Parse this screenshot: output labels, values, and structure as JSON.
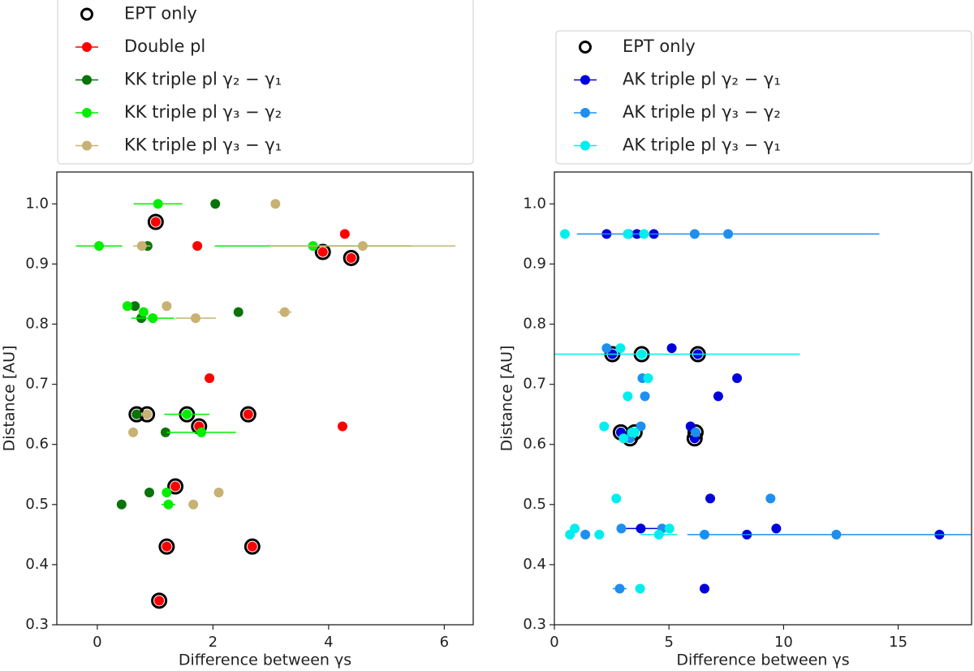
{
  "chart_data": [
    {
      "type": "scatter",
      "xlabel": "Difference between γs",
      "ylabel": "Distance [AU]",
      "legend": "above",
      "xlim": [
        -0.7,
        6.5
      ],
      "ylim": [
        0.3,
        1.053
      ],
      "xticks": [
        0,
        2,
        4,
        6
      ],
      "yticks": [
        0.3,
        0.4,
        0.5,
        0.6,
        0.7,
        0.8,
        0.9,
        {
          "value": 1,
          "label": "1.0"
        }
      ],
      "series": [
        {
          "name": "EPT only",
          "color": "#000000",
          "marker": "open",
          "x": [
            1.01,
            3.9,
            4.39,
            2.61,
            1.76,
            1.35,
            1.2,
            2.68,
            1.07,
            0.68,
            1.55,
            0.86
          ],
          "y": [
            0.97,
            0.92,
            0.91,
            0.65,
            0.63,
            0.53,
            0.43,
            0.43,
            0.34,
            0.65,
            0.65,
            0.65
          ]
        },
        {
          "name": "Double pl",
          "color": "#ff0000",
          "x": [
            1.01,
            1.73,
            4.28,
            3.9,
            4.39,
            1.94,
            4.24,
            2.61,
            1.76,
            1.35,
            1.2,
            2.68,
            1.07
          ],
          "y": [
            0.97,
            0.93,
            0.95,
            0.92,
            0.91,
            0.71,
            0.63,
            0.65,
            0.63,
            0.53,
            0.43,
            0.43,
            0.34
          ]
        },
        {
          "name": "KK triple pl γ₂ − γ₁",
          "color": "#0a730a",
          "x": [
            2.04,
            0.87,
            0.65,
            0.76,
            2.44,
            0.68,
            1.18,
            0.9,
            0.42
          ],
          "y": [
            1.0,
            0.93,
            0.83,
            0.81,
            0.82,
            0.65,
            0.62,
            0.52,
            0.5
          ]
        },
        {
          "name": "KK triple pl γ₃ − γ₂",
          "color": "#00ee00",
          "x": [
            1.05,
            0.03,
            3.73,
            0.52,
            0.8,
            0.96,
            1.55,
            1.8,
            1.2,
            1.23
          ],
          "y": [
            1.0,
            0.93,
            0.93,
            0.83,
            0.82,
            0.81,
            0.65,
            0.62,
            0.52,
            0.5
          ],
          "xerr": [
            0.42,
            0.4,
            1.7,
            null,
            null,
            0.37,
            0.39,
            0.6,
            null,
            0.12
          ]
        },
        {
          "name": "KK triple pl γ₃ − γ₁",
          "color": "#c8b273",
          "x": [
            3.08,
            0.77,
            4.59,
            1.2,
            3.24,
            1.7,
            0.86,
            0.62,
            2.1,
            1.66
          ],
          "y": [
            1.0,
            0.93,
            0.93,
            0.83,
            0.82,
            0.81,
            0.65,
            0.62,
            0.52,
            0.5
          ],
          "xerr": [
            null,
            0.15,
            1.6,
            null,
            0.12,
            0.35,
            null,
            null,
            null,
            null
          ]
        }
      ]
    },
    {
      "type": "scatter",
      "xlabel": "Difference between γs",
      "ylabel": "Distance [AU]",
      "legend": "above",
      "xlim": [
        0,
        18.2
      ],
      "ylim": [
        0.3,
        1.053
      ],
      "xticks": [
        0,
        5,
        10,
        15
      ],
      "yticks": [
        0.3,
        0.4,
        0.5,
        0.6,
        0.7,
        0.8,
        0.9,
        {
          "value": 1,
          "label": "1.0"
        }
      ],
      "series": [
        {
          "name": "EPT only",
          "color": "#000000",
          "marker": "open",
          "x": [
            2.53,
            3.81,
            6.26,
            2.9,
            3.3,
            3.5,
            6.12,
            6.16
          ],
          "y": [
            0.75,
            0.75,
            0.75,
            0.62,
            0.61,
            0.62,
            0.61,
            0.62
          ]
        },
        {
          "name": "AK triple pl γ₂ − γ₁",
          "color": "#0000dd",
          "x": [
            2.28,
            3.6,
            4.34,
            6.26,
            5.12,
            7.97,
            7.15,
            5.94,
            6.12,
            6.8,
            9.68,
            8.4,
            16.8,
            3.77,
            6.55,
            2.53,
            2.9
          ],
          "y": [
            0.95,
            0.95,
            0.95,
            0.75,
            0.76,
            0.71,
            0.68,
            0.63,
            0.61,
            0.51,
            0.46,
            0.45,
            0.45,
            0.46,
            0.36,
            0.75,
            0.62
          ],
          "xerr": [
            null,
            null,
            null,
            null,
            null,
            null,
            null,
            null,
            null,
            null,
            null,
            null,
            null,
            0.9,
            null,
            null,
            null
          ]
        },
        {
          "name": "AK triple pl γ₃ − γ₂",
          "color": "#1e8fef",
          "x": [
            6.12,
            7.58,
            3.24,
            2.28,
            3.95,
            3.77,
            3.84,
            6.16,
            9.43,
            2.92,
            1.35,
            12.3,
            4.7,
            2.85,
            3.3,
            6.55
          ],
          "y": [
            0.95,
            0.95,
            0.95,
            0.76,
            0.68,
            0.63,
            0.71,
            0.62,
            0.51,
            0.46,
            0.45,
            0.45,
            0.46,
            0.36,
            0.61,
            0.45
          ],
          "xerr": [
            null,
            6.6,
            null,
            null,
            null,
            null,
            null,
            null,
            null,
            null,
            null,
            6.5,
            null,
            0.3,
            null,
            null
          ]
        },
        {
          "name": "AK triple pl γ₃ − γ₁",
          "color": "#00eeee",
          "x": [
            0.46,
            3.2,
            3.91,
            3.81,
            2.88,
            4.09,
            3.2,
            2.17,
            3.02,
            3.38,
            2.7,
            0.68,
            0.89,
            1.96,
            5.02,
            4.56,
            3.74,
            3.5
          ],
          "y": [
            0.95,
            0.95,
            0.95,
            0.75,
            0.76,
            0.71,
            0.68,
            0.63,
            0.61,
            0.62,
            0.51,
            0.45,
            0.46,
            0.45,
            0.46,
            0.45,
            0.36,
            0.62
          ],
          "xerr": [
            null,
            null,
            null,
            6.9,
            null,
            null,
            null,
            null,
            null,
            null,
            null,
            null,
            null,
            null,
            null,
            0.8,
            null,
            null
          ]
        }
      ]
    }
  ]
}
